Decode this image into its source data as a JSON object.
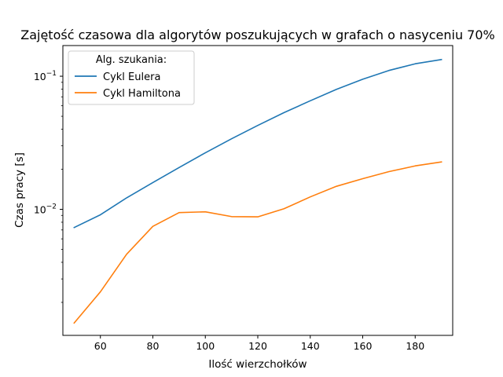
{
  "chart_data": {
    "type": "line",
    "title": "Zajętość czasowa dla algorytów poszukujących w grafach o nasyceniu 70%",
    "xlabel": "Ilość wierzchołków",
    "ylabel": "Czas pracy [s]",
    "yscale": "log",
    "xlim": [
      45.7,
      194.3
    ],
    "ylim": [
      0.00113,
      0.17
    ],
    "x_ticks": [
      60,
      80,
      100,
      120,
      140,
      160,
      180
    ],
    "y_ticks": [
      {
        "value": 0.01,
        "base": "10",
        "exp": "−2"
      },
      {
        "value": 0.1,
        "base": "10",
        "exp": "−1"
      }
    ],
    "legend": {
      "title": "Alg. szukania:",
      "position": "upper-left"
    },
    "x": [
      50,
      60,
      70,
      80,
      90,
      100,
      110,
      120,
      130,
      140,
      150,
      160,
      170,
      180,
      190
    ],
    "series": [
      {
        "name": "Cykl Eulera",
        "color": "#1f77b4",
        "values": [
          0.0073,
          0.0091,
          0.0122,
          0.0159,
          0.0206,
          0.0266,
          0.0339,
          0.0427,
          0.0533,
          0.0654,
          0.0797,
          0.0949,
          0.1105,
          0.124,
          0.1335
        ]
      },
      {
        "name": "Cykl Hamiltona",
        "color": "#ff7f0e",
        "values": [
          0.0014,
          0.0024,
          0.0046,
          0.00745,
          0.00945,
          0.00958,
          0.00882,
          0.00878,
          0.0101,
          0.0124,
          0.0149,
          0.017,
          0.0192,
          0.0212,
          0.0227
        ]
      }
    ]
  }
}
